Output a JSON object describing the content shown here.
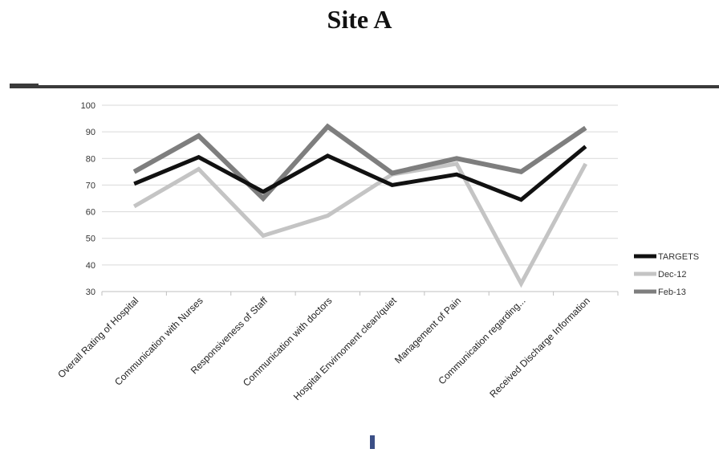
{
  "page": {
    "title": "Site A"
  },
  "colors": {
    "TARGETS": "#111111",
    "Dec-12": "#c4c4c4",
    "Feb-13": "#7e7e7e",
    "grid": "#d9d9d9",
    "rule": "#3a3a3a"
  },
  "chart_data": {
    "type": "line",
    "title": "Site A",
    "xlabel": "",
    "ylabel": "",
    "ylim": [
      30,
      100
    ],
    "yticks": [
      30,
      40,
      50,
      60,
      70,
      80,
      90,
      100
    ],
    "grid": true,
    "legend_position": "right",
    "categories": [
      "Overall Rating of Hospital",
      "Communication with Nurses",
      "Responsiveness of Staff",
      "Communication with doctors",
      "Hospital Envirnoment clean/quiet",
      "Management of Pain",
      "Communication regarding...",
      "Received Discharge Information"
    ],
    "series": [
      {
        "name": "TARGETS",
        "values": [
          70.5,
          80.5,
          67.5,
          81,
          70,
          74,
          64.5,
          84.5
        ]
      },
      {
        "name": "Dec-12",
        "values": [
          62,
          76,
          51,
          58.5,
          74,
          78,
          33,
          78
        ]
      },
      {
        "name": "Feb-13",
        "values": [
          75,
          88.5,
          65,
          92,
          74.5,
          80,
          75,
          91.5
        ]
      }
    ]
  }
}
